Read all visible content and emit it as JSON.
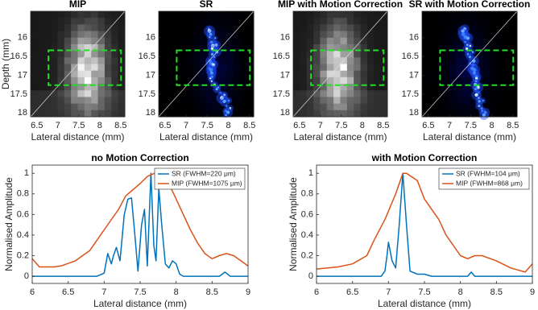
{
  "chart_data": [
    {
      "type": "image",
      "title": "MIP",
      "colormap": "gray",
      "xlabel": "Lateral distance (mm)",
      "ylabel": "Depth (mm)",
      "xlim": [
        6.35,
        8.6
      ],
      "ylim": [
        18.1,
        15.3
      ],
      "xticks": [
        6.5,
        7,
        7.5,
        8,
        8.5
      ],
      "yticks": [
        16,
        16.5,
        17,
        17.5,
        18
      ]
    },
    {
      "type": "image",
      "title": "SR",
      "colormap": "blue",
      "xlabel": "Lateral distance (mm)",
      "xlim": [
        6.35,
        8.6
      ],
      "ylim": [
        18.1,
        15.3
      ],
      "xticks": [
        6.5,
        7,
        7.5,
        8,
        8.5
      ],
      "yticks": [
        16,
        16.5,
        17,
        17.5,
        18
      ]
    },
    {
      "type": "image",
      "title": "MIP with Motion Correction",
      "colormap": "gray",
      "xlabel": "Lateral distance (mm)",
      "xlim": [
        6.35,
        8.6
      ],
      "ylim": [
        18.1,
        15.3
      ],
      "xticks": [
        6.5,
        7,
        7.5,
        8,
        8.5
      ],
      "yticks": [
        16,
        16.5,
        17,
        17.5,
        18
      ]
    },
    {
      "type": "image",
      "title": "SR with Motion Correction",
      "colormap": "blue",
      "xlabel": "Lateral distance (mm)",
      "xlim": [
        6.35,
        8.6
      ],
      "ylim": [
        18.1,
        15.3
      ],
      "xticks": [
        6.5,
        7,
        7.5,
        8,
        8.5
      ],
      "yticks": [
        16,
        16.5,
        17,
        17.5,
        18
      ]
    },
    {
      "type": "line",
      "title": "no Motion Correction",
      "xlabel": "Lateral distance (mm)",
      "ylabel": "Normalised Amplitude",
      "xlim": [
        6,
        9
      ],
      "ylim": [
        -0.07,
        1.08
      ],
      "xticks": [
        6,
        6.5,
        7,
        7.5,
        8,
        8.5,
        9
      ],
      "yticks": [
        0,
        0.2,
        0.4,
        0.6,
        0.8,
        1
      ],
      "legend": "upper right",
      "series": [
        {
          "name": "SR (FWHM=220 μm)",
          "color": "#0072bd",
          "x": [
            6,
            6.9,
            7.0,
            7.05,
            7.1,
            7.13,
            7.17,
            7.22,
            7.28,
            7.33,
            7.38,
            7.42,
            7.47,
            7.52,
            7.56,
            7.6,
            7.65,
            7.69,
            7.72,
            7.76,
            7.8,
            7.85,
            7.9,
            7.95,
            8.0,
            8.05,
            8.1,
            8.6,
            8.68,
            8.75,
            9
          ],
          "values": [
            0,
            0,
            0.03,
            0.22,
            0.12,
            0.2,
            0.28,
            0.15,
            0.6,
            0.75,
            0.76,
            0.45,
            0.05,
            0.5,
            0.65,
            0.1,
            1.0,
            0.3,
            0.15,
            0.85,
            0.5,
            0.12,
            0.08,
            0.15,
            0.12,
            0.02,
            0,
            0,
            0.04,
            0,
            0
          ]
        },
        {
          "name": "MIP (FWHM=1075 μm)",
          "color": "#d95319",
          "x": [
            6,
            6.1,
            6.3,
            6.4,
            6.6,
            6.8,
            7.0,
            7.2,
            7.3,
            7.5,
            7.6,
            7.7,
            7.8,
            7.9,
            8.0,
            8.1,
            8.2,
            8.3,
            8.4,
            8.5,
            8.6,
            8.7,
            8.8,
            8.9,
            9
          ],
          "values": [
            0.17,
            0.09,
            0.09,
            0.1,
            0.15,
            0.25,
            0.45,
            0.65,
            0.78,
            0.9,
            0.97,
            1.0,
            0.97,
            0.9,
            0.75,
            0.6,
            0.45,
            0.32,
            0.22,
            0.17,
            0.2,
            0.22,
            0.2,
            0.15,
            0.1
          ]
        }
      ]
    },
    {
      "type": "line",
      "title": "with Motion Correction",
      "xlabel": "Lateral distance (mm)",
      "ylabel": "Normalised Amplitude",
      "xlim": [
        6,
        9
      ],
      "ylim": [
        -0.07,
        1.08
      ],
      "xticks": [
        6,
        6.5,
        7,
        7.5,
        8,
        8.5,
        9
      ],
      "yticks": [
        0,
        0.2,
        0.4,
        0.6,
        0.8,
        1
      ],
      "legend": "upper right",
      "series": [
        {
          "name": "SR (FWHM=104 μm)",
          "color": "#0072bd",
          "x": [
            6,
            6.9,
            6.95,
            6.98,
            7.0,
            7.05,
            7.1,
            7.15,
            7.2,
            7.25,
            7.3,
            7.4,
            7.5,
            7.6,
            8.1,
            8.15,
            8.2,
            9
          ],
          "values": [
            0,
            0,
            0.05,
            0.2,
            0.33,
            0.15,
            0.08,
            0.5,
            1.0,
            0.5,
            0.05,
            0.02,
            0.02,
            0,
            0,
            0.04,
            0,
            0
          ]
        },
        {
          "name": "MIP (FWHM=868 μm)",
          "color": "#d95319",
          "x": [
            6,
            6.3,
            6.5,
            6.7,
            6.8,
            6.95,
            7.1,
            7.2,
            7.25,
            7.4,
            7.5,
            7.7,
            7.8,
            8.0,
            8.1,
            8.2,
            8.3,
            8.5,
            8.7,
            8.9,
            9
          ],
          "values": [
            0.07,
            0.09,
            0.12,
            0.2,
            0.35,
            0.55,
            0.8,
            1.0,
            1.0,
            0.93,
            0.75,
            0.55,
            0.4,
            0.2,
            0.17,
            0.2,
            0.2,
            0.15,
            0.08,
            0.04,
            0.12
          ]
        }
      ]
    }
  ]
}
